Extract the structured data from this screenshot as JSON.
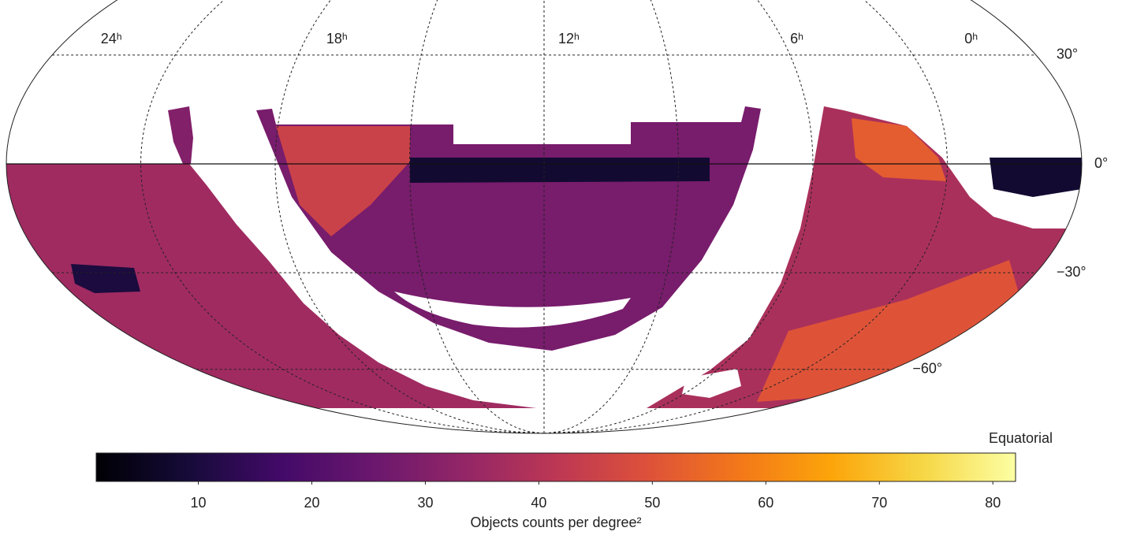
{
  "chart_data": {
    "type": "skymap",
    "projection": "mollweide",
    "ra_ticks": [
      {
        "value": 24,
        "label": "24ʰ"
      },
      {
        "value": 18,
        "label": "18ʰ"
      },
      {
        "value": 12,
        "label": "12ʰ"
      },
      {
        "value": 6,
        "label": "6ʰ"
      },
      {
        "value": 0,
        "label": "0ʰ"
      }
    ],
    "dec_ticks": [
      {
        "value": 30,
        "label": "30°"
      },
      {
        "value": 0,
        "label": "0°"
      },
      {
        "value": -30,
        "label": "−30°"
      },
      {
        "value": -60,
        "label": "−60°"
      }
    ],
    "frame_label": "Equatorial",
    "region_values": [
      36,
      10,
      30,
      28,
      45,
      8,
      38,
      52,
      8,
      50
    ],
    "colormap": "inferno",
    "clim": [
      1,
      82
    ],
    "colorbar_ticks": [
      10,
      20,
      30,
      40,
      50,
      60,
      70,
      80
    ],
    "colorbar_label": "Objects counts per degree²"
  }
}
